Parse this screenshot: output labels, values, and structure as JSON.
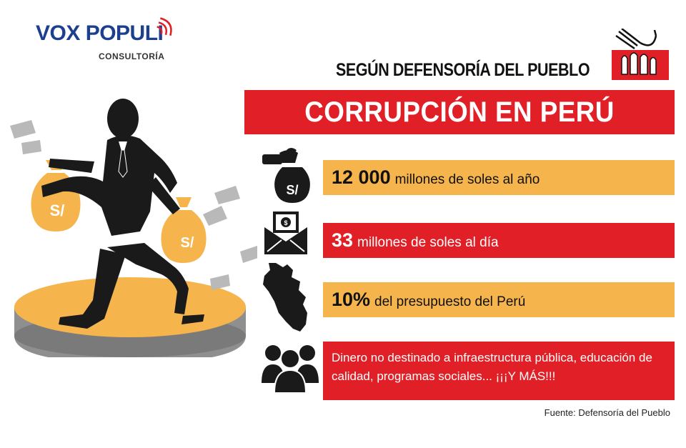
{
  "logo": {
    "name": "VOX POPULI",
    "subtitle": "CONSULTORÍA"
  },
  "header": {
    "label": "SEGÚN DEFENSORÍA DEL PUEBLO",
    "title": "CORRUPCIÓN EN PERÚ"
  },
  "rows": [
    {
      "highlight": "12 000",
      "text": "millones de soles al año",
      "icon": "money-bag-hand-icon",
      "color": "#f5b54c"
    },
    {
      "highlight": "33",
      "text": "millones de soles al día",
      "icon": "envelope-money-icon",
      "color": "#e11f26"
    },
    {
      "highlight": "10%",
      "text": "del presupuesto del Perú",
      "icon": "peru-map-icon",
      "color": "#f5b54c"
    },
    {
      "text": "Dinero no destinado a infraestructura pública, educación de calidad, programas sociales... ¡¡¡Y MÁS!!!",
      "icon": "people-group-icon",
      "color": "#e11f26"
    }
  ],
  "illustration": {
    "bag_symbol": "S/"
  },
  "source": "Fuente: Defensoría del Pueblo",
  "colors": {
    "red": "#e11f26",
    "yellow": "#f5b54c",
    "navy": "#1d3f8f",
    "black": "#1a1a1a"
  }
}
